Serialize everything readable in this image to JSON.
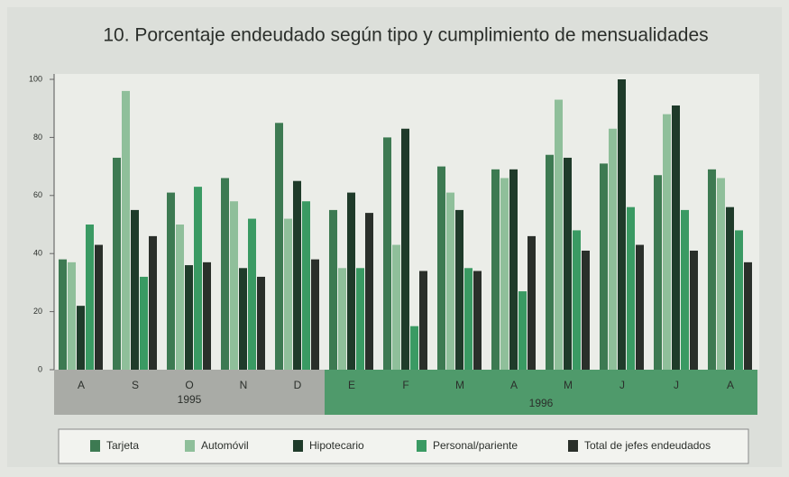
{
  "chart_data": {
    "type": "bar",
    "title": "10. Porcentaje endeudado según tipo y cumplimiento de mensualidades",
    "categories": [
      "A",
      "S",
      "O",
      "N",
      "D",
      "E",
      "F",
      "M",
      "A",
      "M",
      "J",
      "J",
      "A"
    ],
    "year_labels": [
      "1995",
      "1996"
    ],
    "series": [
      {
        "name": "Tarjeta",
        "color": "#3d7a52",
        "values": [
          38,
          73,
          61,
          66,
          85,
          55,
          80,
          70,
          69,
          74,
          71,
          67,
          69
        ]
      },
      {
        "name": "Automóvil",
        "color": "#8fbf9a",
        "values": [
          37,
          96,
          50,
          58,
          52,
          35,
          43,
          61,
          66,
          93,
          83,
          88,
          66
        ]
      },
      {
        "name": "Hipotecario",
        "color": "#1f3b2a",
        "values": [
          22,
          55,
          36,
          35,
          65,
          61,
          83,
          55,
          69,
          73,
          100,
          91,
          56
        ]
      },
      {
        "name": "Personal/pariente",
        "color": "#3a9a63",
        "values": [
          50,
          32,
          63,
          52,
          58,
          35,
          15,
          35,
          27,
          48,
          56,
          55,
          48
        ]
      },
      {
        "name": "Total de jefes endeudados",
        "color": "#2a2f2a",
        "values": [
          43,
          46,
          37,
          32,
          38,
          54,
          34,
          34,
          46,
          41,
          43,
          41,
          37
        ]
      }
    ],
    "ylim": [
      0,
      100
    ],
    "yticks": [
      0,
      20,
      40,
      60,
      80,
      100
    ],
    "grid": false
  }
}
